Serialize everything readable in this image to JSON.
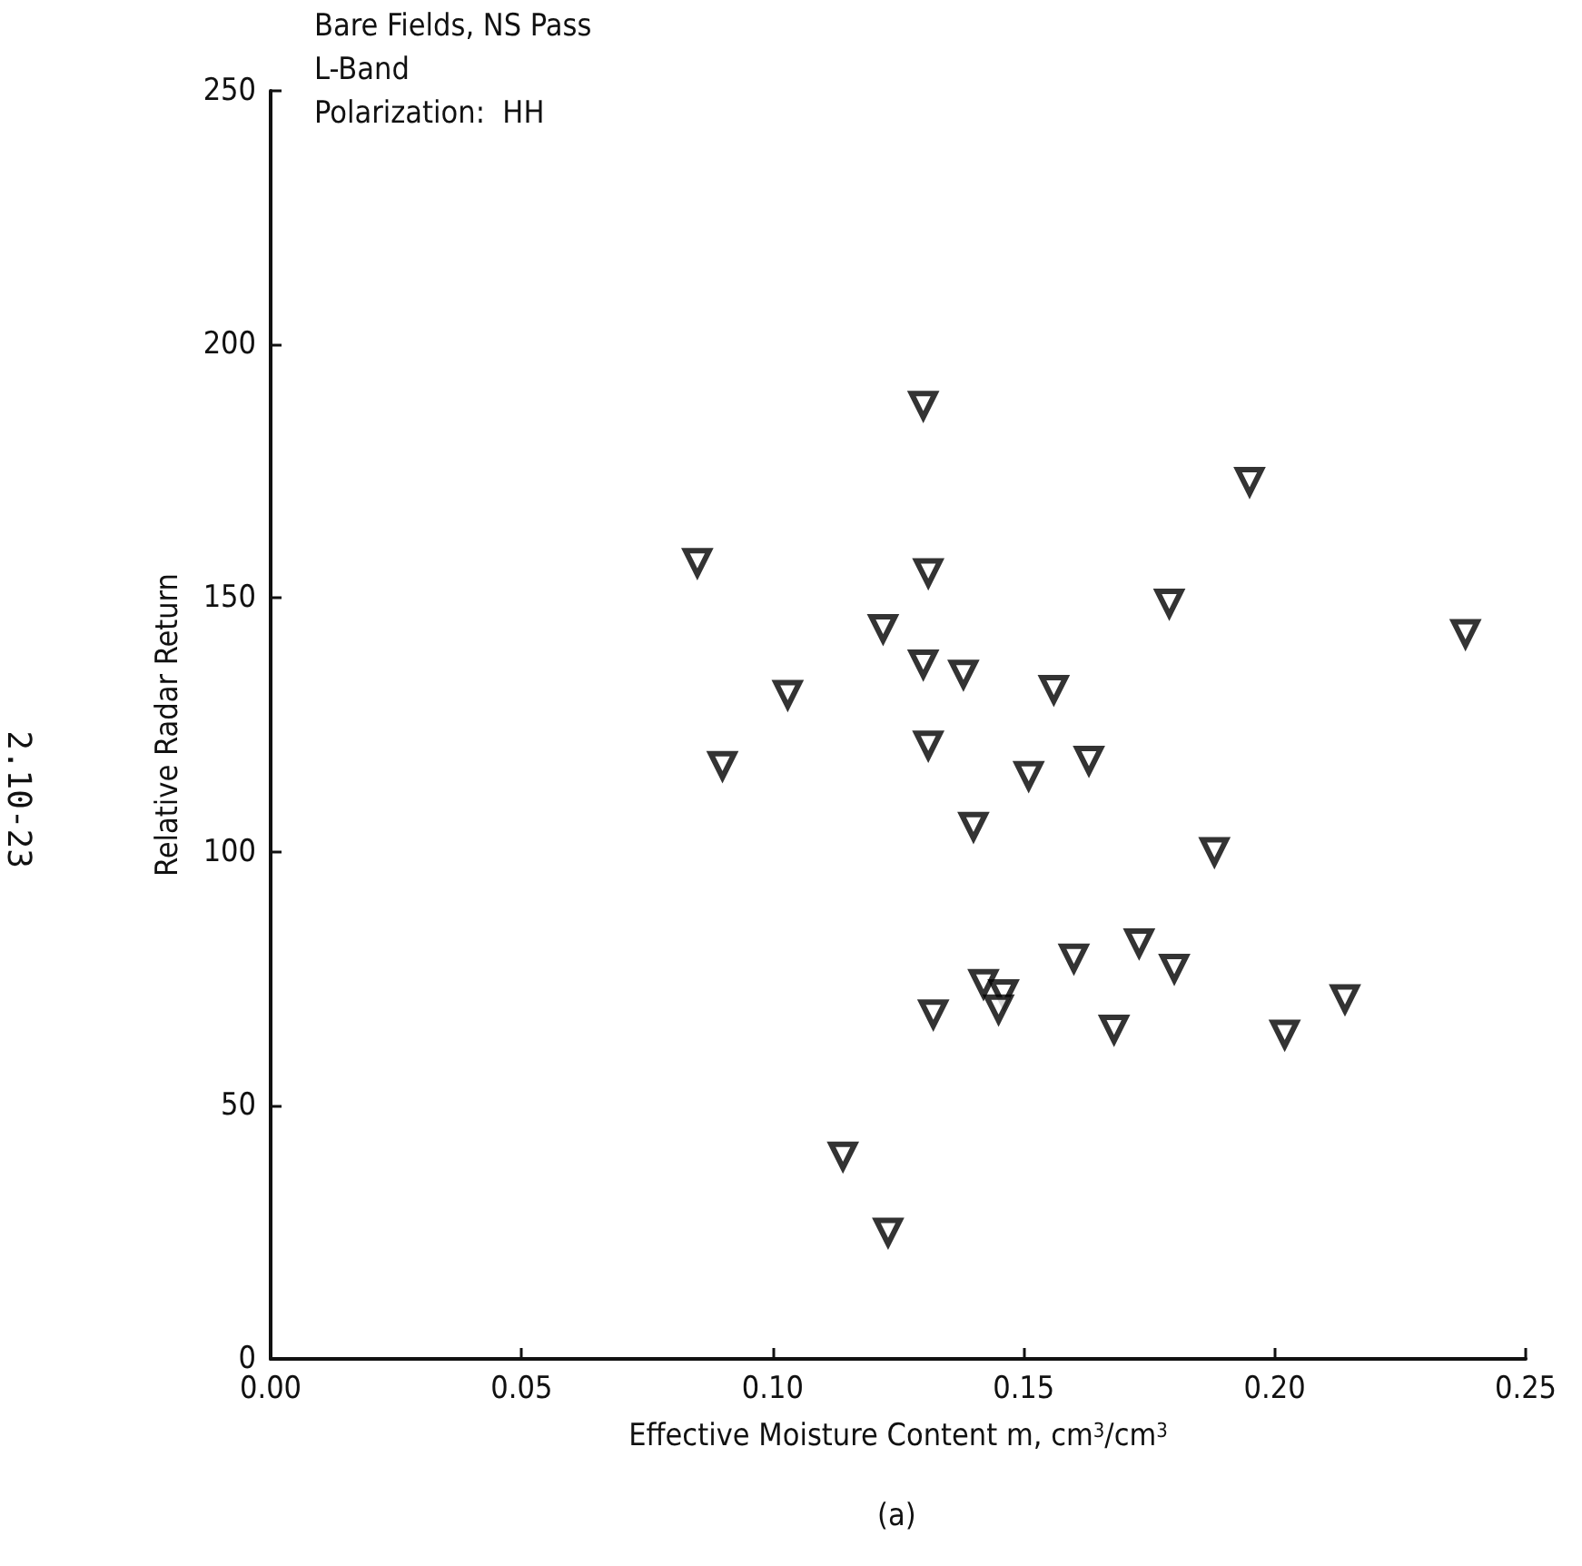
{
  "chart_data": {
    "type": "scatter",
    "title": "Bare Fields, NS Pass",
    "xlabel": "Effective Moisture Content m, cm$^{3}$/cm$^{3}$",
    "ylabel": "Relative Radar Return",
    "annotations": [
      "L-Band",
      "Polarization:  HH",
      "(a)",
      "2.10-23"
    ],
    "x": [
      0.13,
      0.195,
      0.085,
      0.131,
      0.179,
      0.238,
      0.122,
      0.13,
      0.138,
      0.103,
      0.156,
      0.131,
      0.09,
      0.151,
      0.163,
      0.14,
      0.188,
      0.173,
      0.16,
      0.18,
      0.214,
      0.142,
      0.146,
      0.145,
      0.132,
      0.168,
      0.202,
      0.114,
      0.123
    ],
    "values": [
      188,
      173,
      157,
      155,
      149,
      143,
      144,
      137,
      135,
      131,
      132,
      121,
      117,
      115,
      118,
      105,
      100,
      82,
      79,
      77,
      71,
      74,
      72,
      69,
      68,
      65,
      64,
      40,
      25
    ],
    "color": "#000000",
    "marker": "triangle",
    "xlim": [
      0,
      0.25
    ],
    "xticks": [
      {
        "value": 0,
        "label": "0.00"
      },
      {
        "value": 0.05,
        "label": "0.05"
      },
      {
        "value": 0.1,
        "label": "0.10"
      },
      {
        "value": 0.15,
        "label": "0.15"
      },
      {
        "value": 0.2,
        "label": "0.20"
      },
      {
        "value": 0.25,
        "label": "0.25"
      }
    ],
    "ylim": [
      0,
      250
    ],
    "yticks": [
      0,
      50,
      100,
      150,
      200,
      250
    ],
    "grid": false
  }
}
